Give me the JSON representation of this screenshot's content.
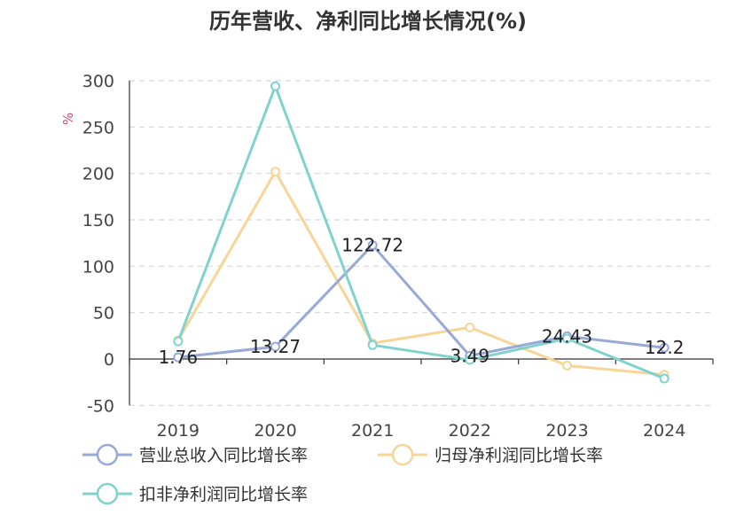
{
  "chart_data": {
    "type": "line",
    "title": "历年营收、净利同比增长情况(%)",
    "ylabel": "%",
    "xlabel": "",
    "categories": [
      "2019",
      "2020",
      "2021",
      "2022",
      "2023",
      "2024"
    ],
    "ylim": [
      -50,
      300
    ],
    "yticks": [
      -50,
      0,
      50,
      100,
      150,
      200,
      250,
      300
    ],
    "grid": true,
    "legend_position": "bottom",
    "series": [
      {
        "name": "营业总收入同比增长率",
        "color": "#97a9d6",
        "values": [
          1.76,
          13.27,
          122.72,
          3.49,
          24.43,
          12.2
        ],
        "labels": [
          "1.76",
          "13.27",
          "122.72",
          "3.49",
          "24.43",
          "12.2"
        ]
      },
      {
        "name": "归母净利润同比增长率",
        "color": "#f8d597",
        "values": [
          20,
          202,
          17,
          34,
          -7,
          -17
        ]
      },
      {
        "name": "扣非净利润同比增长率",
        "color": "#7fd3cf",
        "values": [
          19,
          294,
          15,
          -1,
          22,
          -21
        ]
      }
    ]
  }
}
